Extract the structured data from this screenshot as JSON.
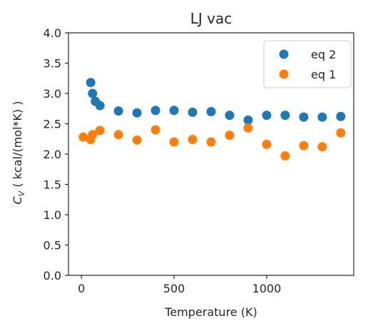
{
  "chart_data": {
    "type": "scatter",
    "title": "LJ vac",
    "xlabel": "Temperature (K)",
    "ylabel": "C_V ( kcal/(mol*K) )",
    "ylabel_parts": {
      "symbol": "C",
      "subscript": "V",
      "rest": " ( kcal/(mol*K) )"
    },
    "xlim": [
      -70,
      1470
    ],
    "ylim": [
      0,
      4.0
    ],
    "xticks": [
      0,
      500,
      1000
    ],
    "xtick_labels": [
      "0",
      "500",
      "1000"
    ],
    "yticks": [
      0,
      0.5,
      1.0,
      1.5,
      2.0,
      2.5,
      3.0,
      3.5,
      4.0
    ],
    "ytick_labels": [
      "0.0",
      "0.5",
      "1.0",
      "1.5",
      "2.0",
      "2.5",
      "3.0",
      "3.5",
      "4.0"
    ],
    "legend_position": "top-right",
    "grid": false,
    "series": [
      {
        "name": "eq 2",
        "color": "#1f77b4",
        "points": [
          [
            50,
            3.18
          ],
          [
            60,
            3.0
          ],
          [
            75,
            2.87
          ],
          [
            100,
            2.8
          ],
          [
            200,
            2.71
          ],
          [
            300,
            2.68
          ],
          [
            400,
            2.72
          ],
          [
            500,
            2.72
          ],
          [
            600,
            2.69
          ],
          [
            700,
            2.7
          ],
          [
            800,
            2.64
          ],
          [
            900,
            2.56
          ],
          [
            1000,
            2.64
          ],
          [
            1100,
            2.64
          ],
          [
            1200,
            2.61
          ],
          [
            1300,
            2.61
          ],
          [
            1400,
            2.62
          ]
        ]
      },
      {
        "name": "eq 1",
        "color": "#ff7f0e",
        "points": [
          [
            10,
            2.28
          ],
          [
            50,
            2.24
          ],
          [
            60,
            2.32
          ],
          [
            100,
            2.39
          ],
          [
            200,
            2.32
          ],
          [
            300,
            2.23
          ],
          [
            400,
            2.4
          ],
          [
            500,
            2.2
          ],
          [
            600,
            2.24
          ],
          [
            700,
            2.2
          ],
          [
            800,
            2.31
          ],
          [
            900,
            2.43
          ],
          [
            1000,
            2.16
          ],
          [
            1100,
            1.97
          ],
          [
            1200,
            2.14
          ],
          [
            1300,
            2.12
          ],
          [
            1400,
            2.35
          ]
        ]
      }
    ]
  }
}
